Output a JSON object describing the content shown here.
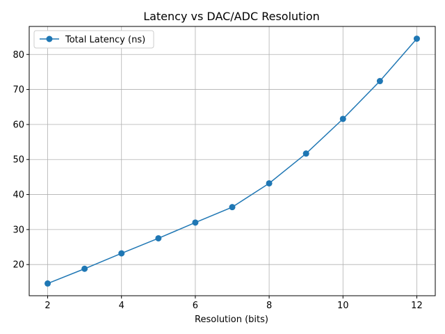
{
  "chart_data": {
    "type": "line",
    "title": "Latency vs DAC/ADC Resolution",
    "xlabel": "Resolution (bits)",
    "ylabel": "",
    "x": [
      2,
      3,
      4,
      5,
      6,
      7,
      8,
      9,
      10,
      11,
      12
    ],
    "series": [
      {
        "name": "Total Latency (ns)",
        "values": [
          14.6,
          18.8,
          23.2,
          27.5,
          32.0,
          36.4,
          43.2,
          51.7,
          61.6,
          72.4,
          84.5
        ],
        "color": "#1f77b4",
        "marker": "circle"
      }
    ],
    "xlim": [
      1.5,
      12.5
    ],
    "ylim": [
      11.1,
      88.0
    ],
    "xticks": [
      2,
      4,
      6,
      8,
      10,
      12
    ],
    "yticks": [
      20,
      30,
      40,
      50,
      60,
      70,
      80
    ],
    "grid": true,
    "legend": "upper-left"
  }
}
